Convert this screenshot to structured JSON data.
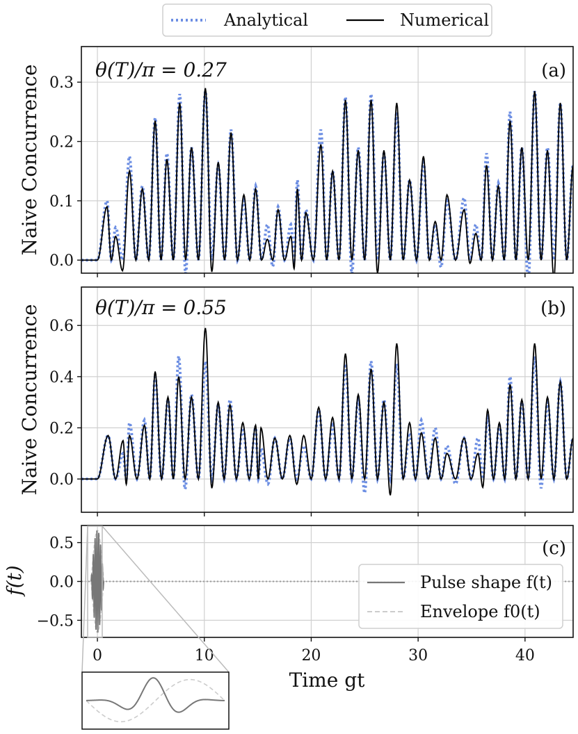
{
  "legend_top": {
    "entries": [
      {
        "label": "Analytical",
        "color": "#6c8ee3",
        "style": "dotted"
      },
      {
        "label": "Numerical",
        "color": "#000000",
        "style": "solid"
      }
    ]
  },
  "chart_data": [
    {
      "type": "line",
      "panel": "(a)",
      "annotation": "θ(T)/π = 0.27",
      "ylabel": "Naive Concurrence",
      "xlabel": "",
      "xlim": [
        -1.5,
        44.5
      ],
      "ylim": [
        -0.022,
        0.36
      ],
      "xticks": [
        0,
        10,
        20,
        30,
        40
      ],
      "yticks": [
        0.0,
        0.1,
        0.2,
        0.3
      ],
      "ytick_labels": [
        "0.0",
        "0.1",
        "0.2",
        "0.3"
      ],
      "grid": true,
      "series": [
        {
          "name": "Analytical",
          "color": "#6c8ee3",
          "style": "dotted",
          "peaks": [
            [
              0.9,
              0.1
            ],
            [
              1.7,
              0.055
            ],
            [
              3.0,
              0.175
            ],
            [
              4.2,
              0.125
            ],
            [
              5.4,
              0.24
            ],
            [
              6.5,
              0.18
            ],
            [
              7.7,
              0.28
            ],
            [
              8.8,
              0.19
            ],
            [
              10.1,
              0.285
            ],
            [
              11.3,
              0.16
            ],
            [
              12.5,
              0.22
            ],
            [
              13.7,
              0.1
            ],
            [
              14.8,
              0.125
            ],
            [
              15.9,
              0.06
            ],
            [
              16.9,
              0.09
            ],
            [
              18.1,
              0.06
            ],
            [
              18.7,
              0.135
            ],
            [
              19.5,
              0.085
            ],
            [
              20.9,
              0.22
            ],
            [
              22.0,
              0.15
            ],
            [
              23.2,
              0.275
            ],
            [
              24.4,
              0.19
            ],
            [
              25.6,
              0.28
            ],
            [
              26.8,
              0.18
            ],
            [
              28.0,
              0.25
            ],
            [
              29.2,
              0.135
            ],
            [
              30.5,
              0.165
            ],
            [
              31.6,
              0.06
            ],
            [
              32.7,
              0.1
            ],
            [
              34.3,
              0.105
            ],
            [
              35.4,
              0.06
            ],
            [
              36.4,
              0.18
            ],
            [
              37.5,
              0.13
            ],
            [
              38.6,
              0.25
            ],
            [
              39.7,
              0.19
            ],
            [
              40.9,
              0.285
            ],
            [
              42.1,
              0.19
            ],
            [
              43.3,
              0.265
            ]
          ]
        },
        {
          "name": "Numerical",
          "color": "#000000",
          "style": "solid",
          "peaks": [
            [
              0.9,
              0.09
            ],
            [
              1.7,
              0.04
            ],
            [
              3.0,
              0.15
            ],
            [
              4.2,
              0.12
            ],
            [
              5.4,
              0.235
            ],
            [
              6.5,
              0.17
            ],
            [
              7.7,
              0.265
            ],
            [
              8.8,
              0.19
            ],
            [
              10.1,
              0.29
            ],
            [
              11.3,
              0.165
            ],
            [
              12.5,
              0.215
            ],
            [
              13.7,
              0.11
            ],
            [
              14.8,
              0.12
            ],
            [
              15.9,
              0.035
            ],
            [
              16.9,
              0.085
            ],
            [
              18.1,
              0.04
            ],
            [
              18.7,
              0.12
            ],
            [
              19.5,
              0.08
            ],
            [
              20.9,
              0.195
            ],
            [
              22.0,
              0.15
            ],
            [
              23.2,
              0.27
            ],
            [
              24.4,
              0.185
            ],
            [
              25.6,
              0.27
            ],
            [
              26.8,
              0.185
            ],
            [
              28.0,
              0.265
            ],
            [
              29.2,
              0.135
            ],
            [
              30.5,
              0.175
            ],
            [
              31.6,
              0.065
            ],
            [
              32.7,
              0.11
            ],
            [
              34.3,
              0.085
            ],
            [
              35.4,
              0.045
            ],
            [
              36.4,
              0.16
            ],
            [
              37.5,
              0.125
            ],
            [
              38.6,
              0.235
            ],
            [
              39.7,
              0.19
            ],
            [
              40.9,
              0.285
            ],
            [
              42.1,
              0.185
            ],
            [
              43.3,
              0.265
            ]
          ]
        }
      ]
    },
    {
      "type": "line",
      "panel": "(b)",
      "annotation": "θ(T)/π = 0.55",
      "ylabel": "Naive Concurrence",
      "xlabel": "",
      "xlim": [
        -1.5,
        44.5
      ],
      "ylim": [
        -0.13,
        0.75
      ],
      "xticks": [
        0,
        10,
        20,
        30,
        40
      ],
      "yticks": [
        0.0,
        0.2,
        0.4,
        0.6
      ],
      "ytick_labels": [
        "0.0",
        "0.2",
        "0.4",
        "0.6"
      ],
      "grid": true,
      "series": [
        {
          "name": "Analytical",
          "color": "#6c8ee3",
          "style": "dotted",
          "peaks": [
            [
              1.0,
              0.17
            ],
            [
              2.4,
              0.1
            ],
            [
              3.0,
              0.22
            ],
            [
              4.4,
              0.23
            ],
            [
              5.4,
              0.4
            ],
            [
              6.6,
              0.31
            ],
            [
              7.6,
              0.48
            ],
            [
              8.8,
              0.33
            ],
            [
              10.1,
              0.46
            ],
            [
              11.3,
              0.29
            ],
            [
              12.4,
              0.31
            ],
            [
              13.6,
              0.2
            ],
            [
              14.8,
              0.2
            ],
            [
              15.3,
              0.12
            ],
            [
              16.6,
              0.16
            ],
            [
              18.0,
              0.16
            ],
            [
              19.3,
              0.13
            ],
            [
              20.7,
              0.27
            ],
            [
              22.0,
              0.21
            ],
            [
              23.2,
              0.45
            ],
            [
              24.4,
              0.31
            ],
            [
              25.6,
              0.46
            ],
            [
              26.8,
              0.31
            ],
            [
              28.0,
              0.45
            ],
            [
              29.2,
              0.18
            ],
            [
              30.3,
              0.23
            ],
            [
              31.6,
              0.2
            ],
            [
              32.7,
              0.13
            ],
            [
              34.3,
              0.16
            ],
            [
              35.6,
              0.16
            ],
            [
              36.5,
              0.24
            ],
            [
              37.6,
              0.21
            ],
            [
              38.6,
              0.4
            ],
            [
              39.7,
              0.3
            ],
            [
              40.9,
              0.48
            ],
            [
              42.1,
              0.3
            ],
            [
              43.3,
              0.38
            ]
          ]
        },
        {
          "name": "Numerical",
          "color": "#000000",
          "style": "solid",
          "peaks": [
            [
              1.0,
              0.17
            ],
            [
              2.4,
              0.15
            ],
            [
              3.0,
              0.17
            ],
            [
              4.4,
              0.21
            ],
            [
              5.4,
              0.42
            ],
            [
              6.6,
              0.32
            ],
            [
              7.6,
              0.4
            ],
            [
              8.8,
              0.32
            ],
            [
              10.1,
              0.59
            ],
            [
              11.3,
              0.3
            ],
            [
              12.4,
              0.29
            ],
            [
              13.6,
              0.22
            ],
            [
              14.8,
              0.21
            ],
            [
              15.3,
              0.2
            ],
            [
              16.6,
              0.16
            ],
            [
              18.0,
              0.17
            ],
            [
              19.3,
              0.17
            ],
            [
              20.7,
              0.28
            ],
            [
              22.0,
              0.24
            ],
            [
              23.2,
              0.49
            ],
            [
              24.4,
              0.33
            ],
            [
              25.6,
              0.43
            ],
            [
              26.8,
              0.3
            ],
            [
              28.0,
              0.53
            ],
            [
              29.2,
              0.22
            ],
            [
              30.3,
              0.18
            ],
            [
              31.6,
              0.16
            ],
            [
              32.7,
              0.1
            ],
            [
              34.3,
              0.16
            ],
            [
              35.6,
              0.1
            ],
            [
              36.5,
              0.27
            ],
            [
              37.6,
              0.22
            ],
            [
              38.6,
              0.37
            ],
            [
              39.7,
              0.31
            ],
            [
              40.9,
              0.53
            ],
            [
              42.1,
              0.32
            ],
            [
              43.3,
              0.38
            ]
          ]
        }
      ]
    },
    {
      "type": "line",
      "panel": "(c)",
      "ylabel": "f(t)",
      "xlabel": "Time gt",
      "xlim": [
        -1.5,
        44.5
      ],
      "ylim": [
        -0.72,
        0.72
      ],
      "xticks": [
        0,
        10,
        20,
        30,
        40
      ],
      "xtick_labels": [
        "0",
        "10",
        "20",
        "30",
        "40"
      ],
      "yticks": [
        -0.5,
        0.0,
        0.5
      ],
      "ytick_labels": [
        "−0.5",
        "0.0",
        "0.5"
      ],
      "grid": true,
      "legend": [
        {
          "label": "Pulse shape f(t)",
          "color": "#777777",
          "style": "solid"
        },
        {
          "label": "Envelope f0(t)",
          "color": "#cccccc",
          "style": "dashed"
        }
      ],
      "pulse": {
        "t_start": -0.6,
        "t_end": 0.6,
        "amplitude": 0.66,
        "frequency": 2.2
      }
    }
  ]
}
